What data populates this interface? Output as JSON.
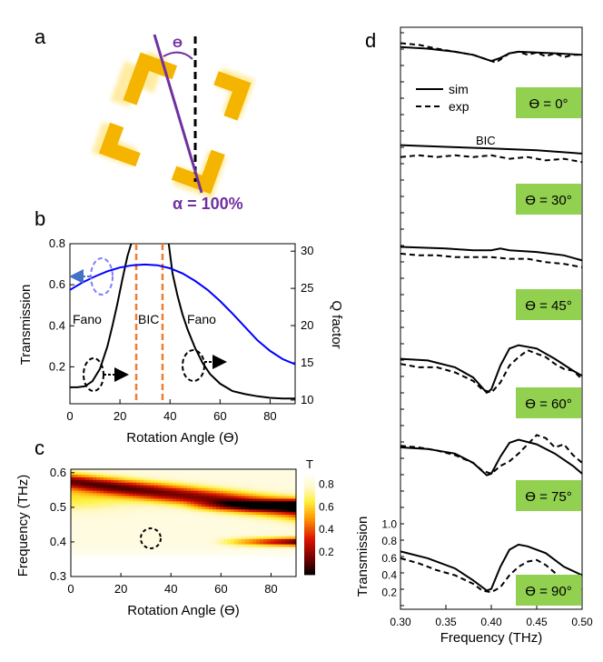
{
  "panels": {
    "a": {
      "letter": "a",
      "angle_symbol": "ϴ",
      "alpha_label": "α = 100%",
      "colors": {
        "gold": "#f4b400",
        "gold_light": "#ffe066",
        "purple": "#7030a0"
      }
    },
    "d": {
      "letter": "d",
      "legend": {
        "sim": "sim",
        "exp": "exp"
      },
      "bic_label": "BIC",
      "angle_labels": [
        "ϴ =  0°",
        "ϴ = 30°",
        "ϴ = 45°",
        "ϴ = 60°",
        "ϴ = 75°",
        "ϴ = 90°"
      ],
      "badge_color": "#92d050",
      "ylabel": "Transmission",
      "xlabel": "Frequency (THz)",
      "xticks": [
        "0.30",
        "0.35",
        "0.40",
        "0.45",
        "0.50"
      ],
      "yticks": [
        "1.0",
        "0.8",
        "0.6",
        "0.4",
        "0.2"
      ]
    }
  },
  "chart_data": [
    {
      "id": "b",
      "letter": "b",
      "type": "line",
      "xlabel": "Rotation Angle (ϴ)",
      "ylabel": "Transmission",
      "y2label": "Q factor",
      "xlim": [
        0,
        90
      ],
      "ylim": [
        0.02,
        0.8
      ],
      "y2lim": [
        9.5,
        31
      ],
      "xticks": [
        "0",
        "20",
        "40",
        "60",
        "80"
      ],
      "yticks": [
        "0.2",
        "0.4",
        "0.6",
        "0.8"
      ],
      "y2ticks": [
        "10",
        "15",
        "20",
        "25",
        "30"
      ],
      "annotations": {
        "fano_left": "Fano",
        "bic": "BIC",
        "fano_right": "Fano"
      },
      "bic_lines_x": [
        26.5,
        37
      ],
      "colors": {
        "q": "#0000ff",
        "t": "#000000",
        "bic": "#ed7d31",
        "arrow": "#4472c4",
        "ellipse_blue": "#7f7fff"
      },
      "series": [
        {
          "name": "Transmission",
          "axis": "left",
          "x": [
            0,
            3,
            6,
            9,
            12,
            15,
            17,
            19,
            21,
            23,
            24.5
          ],
          "values": [
            0.1,
            0.1,
            0.105,
            0.13,
            0.19,
            0.3,
            0.4,
            0.51,
            0.63,
            0.74,
            0.8
          ]
        },
        {
          "name": "Q factor",
          "axis": "right",
          "x": [
            39.5,
            41,
            43,
            45,
            47,
            50,
            53,
            56,
            60,
            65,
            70,
            75,
            80,
            85,
            90
          ],
          "values": [
            31,
            27,
            24,
            21.5,
            19.5,
            17,
            15,
            13.5,
            12.2,
            11.2,
            10.8,
            10.5,
            10.3,
            10.2,
            10.2
          ]
        },
        {
          "name": "Q factor (blue)",
          "axis": "right",
          "x": [
            0,
            5,
            10,
            15,
            20,
            25,
            30,
            35,
            40,
            45,
            50,
            55,
            60,
            65,
            70,
            75,
            80,
            85,
            90
          ],
          "values": [
            24.8,
            25.8,
            26.6,
            27.3,
            27.8,
            28.1,
            28.2,
            28.1,
            27.7,
            27.0,
            26.0,
            24.8,
            23.3,
            21.6,
            19.8,
            18.0,
            16.6,
            15.5,
            14.8
          ]
        }
      ]
    },
    {
      "id": "c",
      "letter": "c",
      "type": "heatmap",
      "xlabel": "Rotation Angle (ϴ)",
      "ylabel": "Frequency (THz)",
      "xlim": [
        0,
        90
      ],
      "ylim": [
        0.3,
        0.61
      ],
      "xticks": [
        "0",
        "20",
        "40",
        "60",
        "80"
      ],
      "yticks": [
        "0.3",
        "0.4",
        "0.5",
        "0.6"
      ],
      "colorbar_label": "T",
      "colorbar_ticks": [
        "0.8",
        "0.6",
        "0.4",
        "0.2"
      ],
      "circle_at": [
        33,
        0.41
      ]
    },
    {
      "id": "d",
      "type": "line",
      "xlim": [
        0.3,
        0.5
      ],
      "series": [
        {
          "name": "0° sim",
          "x": [
            0.3,
            0.33,
            0.36,
            0.38,
            0.4,
            0.41,
            0.42,
            0.43,
            0.45,
            0.47,
            0.5
          ],
          "values": [
            0.92,
            0.9,
            0.86,
            0.82,
            0.74,
            0.78,
            0.84,
            0.86,
            0.85,
            0.84,
            0.82
          ]
        },
        {
          "name": "0° exp",
          "x": [
            0.3,
            0.32,
            0.34,
            0.36,
            0.38,
            0.39,
            0.4,
            0.405,
            0.41,
            0.42,
            0.43,
            0.44,
            0.45,
            0.46,
            0.47,
            0.48,
            0.49,
            0.5
          ],
          "values": [
            0.97,
            0.95,
            0.9,
            0.86,
            0.82,
            0.78,
            0.74,
            0.72,
            0.76,
            0.84,
            0.86,
            0.82,
            0.85,
            0.8,
            0.84,
            0.79,
            0.82,
            0.82
          ]
        },
        {
          "name": "30° sim",
          "x": [
            0.3,
            0.35,
            0.4,
            0.45,
            0.5
          ],
          "values": [
            0.86,
            0.84,
            0.82,
            0.8,
            0.76
          ]
        },
        {
          "name": "30° exp",
          "x": [
            0.3,
            0.32,
            0.34,
            0.36,
            0.38,
            0.4,
            0.42,
            0.44,
            0.46,
            0.48,
            0.5
          ],
          "values": [
            0.72,
            0.74,
            0.72,
            0.74,
            0.72,
            0.74,
            0.7,
            0.72,
            0.68,
            0.7,
            0.66
          ]
        },
        {
          "name": "45° sim",
          "x": [
            0.3,
            0.35,
            0.38,
            0.4,
            0.41,
            0.42,
            0.45,
            0.48,
            0.5
          ],
          "values": [
            0.84,
            0.82,
            0.8,
            0.8,
            0.82,
            0.8,
            0.78,
            0.74,
            0.68
          ]
        },
        {
          "name": "45° exp",
          "x": [
            0.3,
            0.32,
            0.34,
            0.36,
            0.38,
            0.4,
            0.42,
            0.44,
            0.46,
            0.48,
            0.5
          ],
          "values": [
            0.76,
            0.74,
            0.74,
            0.72,
            0.72,
            0.72,
            0.7,
            0.7,
            0.66,
            0.64,
            0.6
          ]
        },
        {
          "name": "60° sim",
          "x": [
            0.3,
            0.33,
            0.36,
            0.38,
            0.395,
            0.4,
            0.41,
            0.42,
            0.43,
            0.45,
            0.47,
            0.49,
            0.5
          ],
          "values": [
            0.7,
            0.68,
            0.6,
            0.48,
            0.3,
            0.34,
            0.62,
            0.82,
            0.86,
            0.82,
            0.7,
            0.56,
            0.5
          ]
        },
        {
          "name": "60° exp",
          "x": [
            0.3,
            0.32,
            0.34,
            0.36,
            0.38,
            0.39,
            0.4,
            0.41,
            0.42,
            0.43,
            0.44,
            0.45,
            0.46,
            0.47,
            0.48,
            0.49,
            0.5
          ],
          "values": [
            0.64,
            0.6,
            0.6,
            0.54,
            0.44,
            0.34,
            0.3,
            0.42,
            0.62,
            0.72,
            0.8,
            0.76,
            0.72,
            0.64,
            0.58,
            0.56,
            0.46
          ]
        },
        {
          "name": "75° sim",
          "x": [
            0.3,
            0.33,
            0.36,
            0.38,
            0.395,
            0.4,
            0.41,
            0.42,
            0.43,
            0.45,
            0.47,
            0.49,
            0.5
          ],
          "values": [
            0.8,
            0.78,
            0.72,
            0.6,
            0.44,
            0.46,
            0.68,
            0.86,
            0.9,
            0.84,
            0.72,
            0.56,
            0.46
          ]
        },
        {
          "name": "75° exp",
          "x": [
            0.3,
            0.32,
            0.34,
            0.36,
            0.38,
            0.39,
            0.4,
            0.41,
            0.42,
            0.43,
            0.44,
            0.45,
            0.46,
            0.47,
            0.48,
            0.49,
            0.5
          ],
          "values": [
            0.82,
            0.8,
            0.76,
            0.7,
            0.6,
            0.5,
            0.46,
            0.56,
            0.62,
            0.72,
            0.84,
            0.96,
            0.92,
            0.8,
            0.84,
            0.7,
            0.6
          ]
        },
        {
          "name": "90° sim",
          "x": [
            0.3,
            0.33,
            0.36,
            0.38,
            0.395,
            0.4,
            0.41,
            0.42,
            0.43,
            0.44,
            0.46,
            0.48,
            0.5
          ],
          "values": [
            0.68,
            0.6,
            0.48,
            0.34,
            0.22,
            0.24,
            0.5,
            0.7,
            0.76,
            0.74,
            0.66,
            0.5,
            0.4
          ]
        },
        {
          "name": "90° exp",
          "x": [
            0.3,
            0.32,
            0.34,
            0.36,
            0.38,
            0.39,
            0.4,
            0.41,
            0.42,
            0.43,
            0.44,
            0.45,
            0.46,
            0.48,
            0.5
          ],
          "values": [
            0.6,
            0.54,
            0.46,
            0.4,
            0.3,
            0.22,
            0.2,
            0.26,
            0.4,
            0.5,
            0.56,
            0.58,
            0.52,
            0.34,
            0.24
          ]
        }
      ]
    }
  ]
}
